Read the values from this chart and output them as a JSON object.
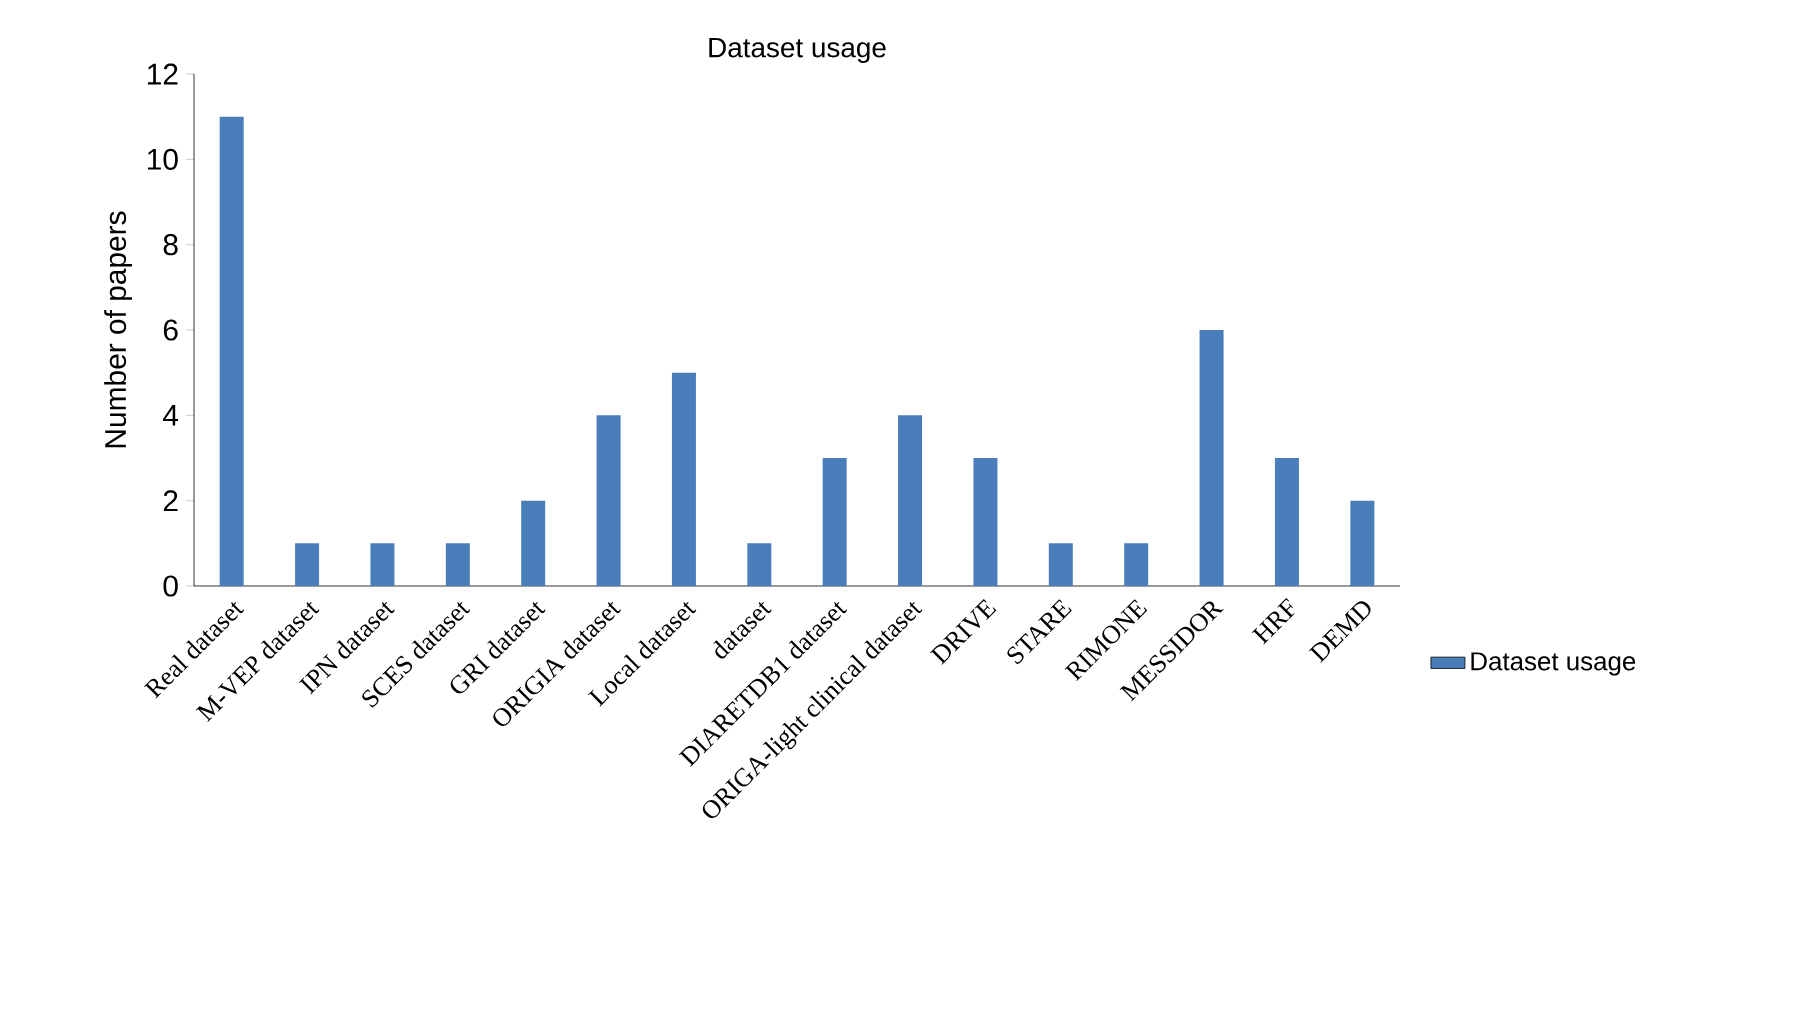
{
  "chart_data": {
    "type": "bar",
    "title": "Dataset usage",
    "ylabel": "Number of papers",
    "categories": [
      "Real dataset",
      "M-VEP dataset",
      "IPN dataset",
      "SCES dataset",
      "GRI dataset",
      "ORIGIA dataset",
      "Local dataset",
      "dataset",
      "DIARETDB1 dataset",
      "ORIGA-light clinical dataset",
      "DRIVE",
      "STARE",
      "RIMONE",
      "MESSIDOR",
      "HRF",
      "DEMD"
    ],
    "series": [
      {
        "name": "Dataset usage",
        "color": "#4a7ebb",
        "values": [
          11,
          1,
          1,
          1,
          2,
          4,
          5,
          1,
          3,
          4,
          3,
          1,
          1,
          6,
          3,
          2
        ]
      }
    ],
    "ylim": [
      0,
      12
    ],
    "yticks": [
      0,
      2,
      4,
      6,
      8,
      10,
      12
    ],
    "grid": false,
    "legend": "right"
  }
}
